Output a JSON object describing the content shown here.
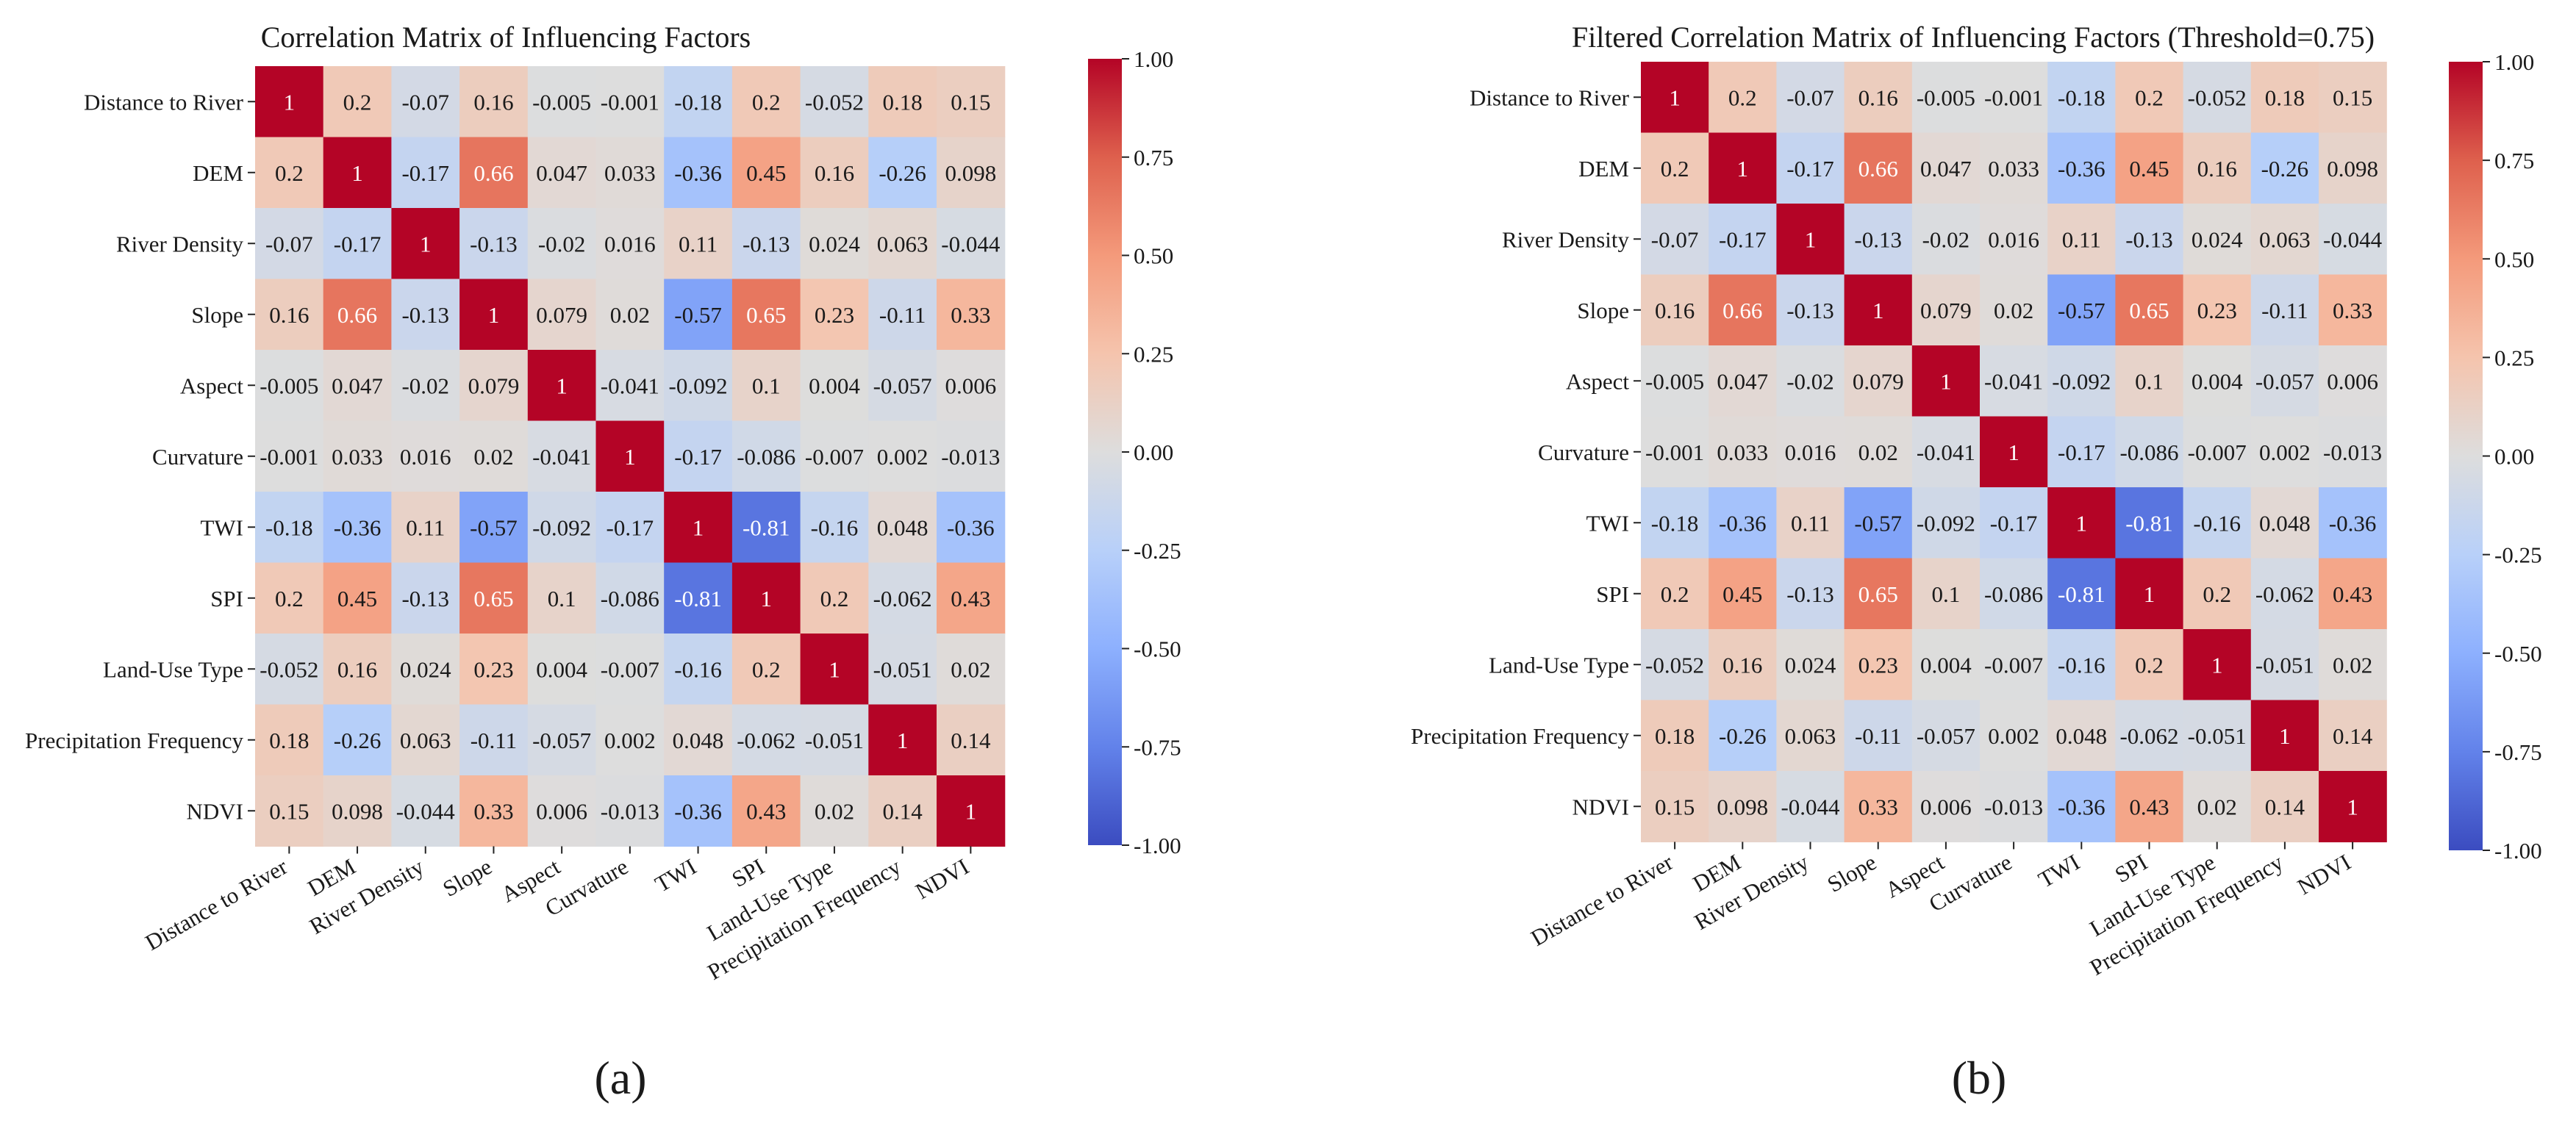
{
  "chart_data": [
    {
      "type": "heatmap",
      "title": "Correlation Matrix of Influencing Factors",
      "panel_label": "(a)",
      "variables": [
        "Distance to River",
        "DEM",
        "River Density",
        "Slope",
        "Aspect",
        "Curvature",
        "TWI",
        "SPI",
        "Land-Use Type",
        "Precipitation Frequency",
        "NDVI"
      ],
      "values": [
        [
          1,
          0.2,
          -0.07,
          0.16,
          -0.005,
          -0.001,
          -0.18,
          0.2,
          -0.052,
          0.18,
          0.15
        ],
        [
          0.2,
          1,
          -0.17,
          0.66,
          0.047,
          0.033,
          -0.36,
          0.45,
          0.16,
          -0.26,
          0.098
        ],
        [
          -0.07,
          -0.17,
          1,
          -0.13,
          -0.02,
          0.016,
          0.11,
          -0.13,
          0.024,
          0.063,
          -0.044
        ],
        [
          0.16,
          0.66,
          -0.13,
          1,
          0.079,
          0.02,
          -0.57,
          0.65,
          0.23,
          -0.11,
          0.33
        ],
        [
          -0.005,
          0.047,
          -0.02,
          0.079,
          1,
          -0.041,
          -0.092,
          0.1,
          0.004,
          -0.057,
          0.006
        ],
        [
          -0.001,
          0.033,
          0.016,
          0.02,
          -0.041,
          1,
          -0.17,
          -0.086,
          -0.007,
          0.002,
          -0.013
        ],
        [
          -0.18,
          -0.36,
          0.11,
          -0.57,
          -0.092,
          -0.17,
          1,
          -0.81,
          -0.16,
          0.048,
          -0.36
        ],
        [
          0.2,
          0.45,
          -0.13,
          0.65,
          0.1,
          -0.086,
          -0.81,
          1,
          0.2,
          -0.062,
          0.43
        ],
        [
          -0.052,
          0.16,
          0.024,
          0.23,
          0.004,
          -0.007,
          -0.16,
          0.2,
          1,
          -0.051,
          0.02
        ],
        [
          0.18,
          -0.26,
          0.063,
          -0.11,
          -0.057,
          0.002,
          0.048,
          -0.062,
          -0.051,
          1,
          0.14
        ],
        [
          0.15,
          0.098,
          -0.044,
          0.33,
          0.006,
          -0.013,
          -0.36,
          0.43,
          0.02,
          0.14,
          1
        ]
      ],
      "colorbar": {
        "min": -1,
        "max": 1,
        "ticks": [
          "1.00",
          "0.75",
          "0.50",
          "0.25",
          "0.00",
          "-0.25",
          "-0.50",
          "-0.75",
          "-1.00"
        ]
      },
      "colormap": "coolwarm"
    },
    {
      "type": "heatmap",
      "title": "Filtered Correlation Matrix of Influencing Factors (Threshold=0.75)",
      "panel_label": "(b)",
      "variables": [
        "Distance to River",
        "DEM",
        "River Density",
        "Slope",
        "Aspect",
        "Curvature",
        "TWI",
        "SPI",
        "Land-Use Type",
        "Precipitation Frequency",
        "NDVI"
      ],
      "values": [
        [
          1,
          0.2,
          -0.07,
          0.16,
          -0.005,
          -0.001,
          -0.18,
          0.2,
          -0.052,
          0.18,
          0.15
        ],
        [
          0.2,
          1,
          -0.17,
          0.66,
          0.047,
          0.033,
          -0.36,
          0.45,
          0.16,
          -0.26,
          0.098
        ],
        [
          -0.07,
          -0.17,
          1,
          -0.13,
          -0.02,
          0.016,
          0.11,
          -0.13,
          0.024,
          0.063,
          -0.044
        ],
        [
          0.16,
          0.66,
          -0.13,
          1,
          0.079,
          0.02,
          -0.57,
          0.65,
          0.23,
          -0.11,
          0.33
        ],
        [
          -0.005,
          0.047,
          -0.02,
          0.079,
          1,
          -0.041,
          -0.092,
          0.1,
          0.004,
          -0.057,
          0.006
        ],
        [
          -0.001,
          0.033,
          0.016,
          0.02,
          -0.041,
          1,
          -0.17,
          -0.086,
          -0.007,
          0.002,
          -0.013
        ],
        [
          -0.18,
          -0.36,
          0.11,
          -0.57,
          -0.092,
          -0.17,
          1,
          -0.81,
          -0.16,
          0.048,
          -0.36
        ],
        [
          0.2,
          0.45,
          -0.13,
          0.65,
          0.1,
          -0.086,
          -0.81,
          1,
          0.2,
          -0.062,
          0.43
        ],
        [
          -0.052,
          0.16,
          0.024,
          0.23,
          0.004,
          -0.007,
          -0.16,
          0.2,
          1,
          -0.051,
          0.02
        ],
        [
          0.18,
          -0.26,
          0.063,
          -0.11,
          -0.057,
          0.002,
          0.048,
          -0.062,
          -0.051,
          1,
          0.14
        ],
        [
          0.15,
          0.098,
          -0.044,
          0.33,
          0.006,
          -0.013,
          -0.36,
          0.43,
          0.02,
          0.14,
          1
        ]
      ],
      "colorbar": {
        "min": -1,
        "max": 1,
        "ticks": [
          "1.00",
          "0.75",
          "0.50",
          "0.25",
          "0.00",
          "-0.25",
          "-0.50",
          "-0.75",
          "-1.00"
        ]
      },
      "colormap": "coolwarm"
    }
  ]
}
